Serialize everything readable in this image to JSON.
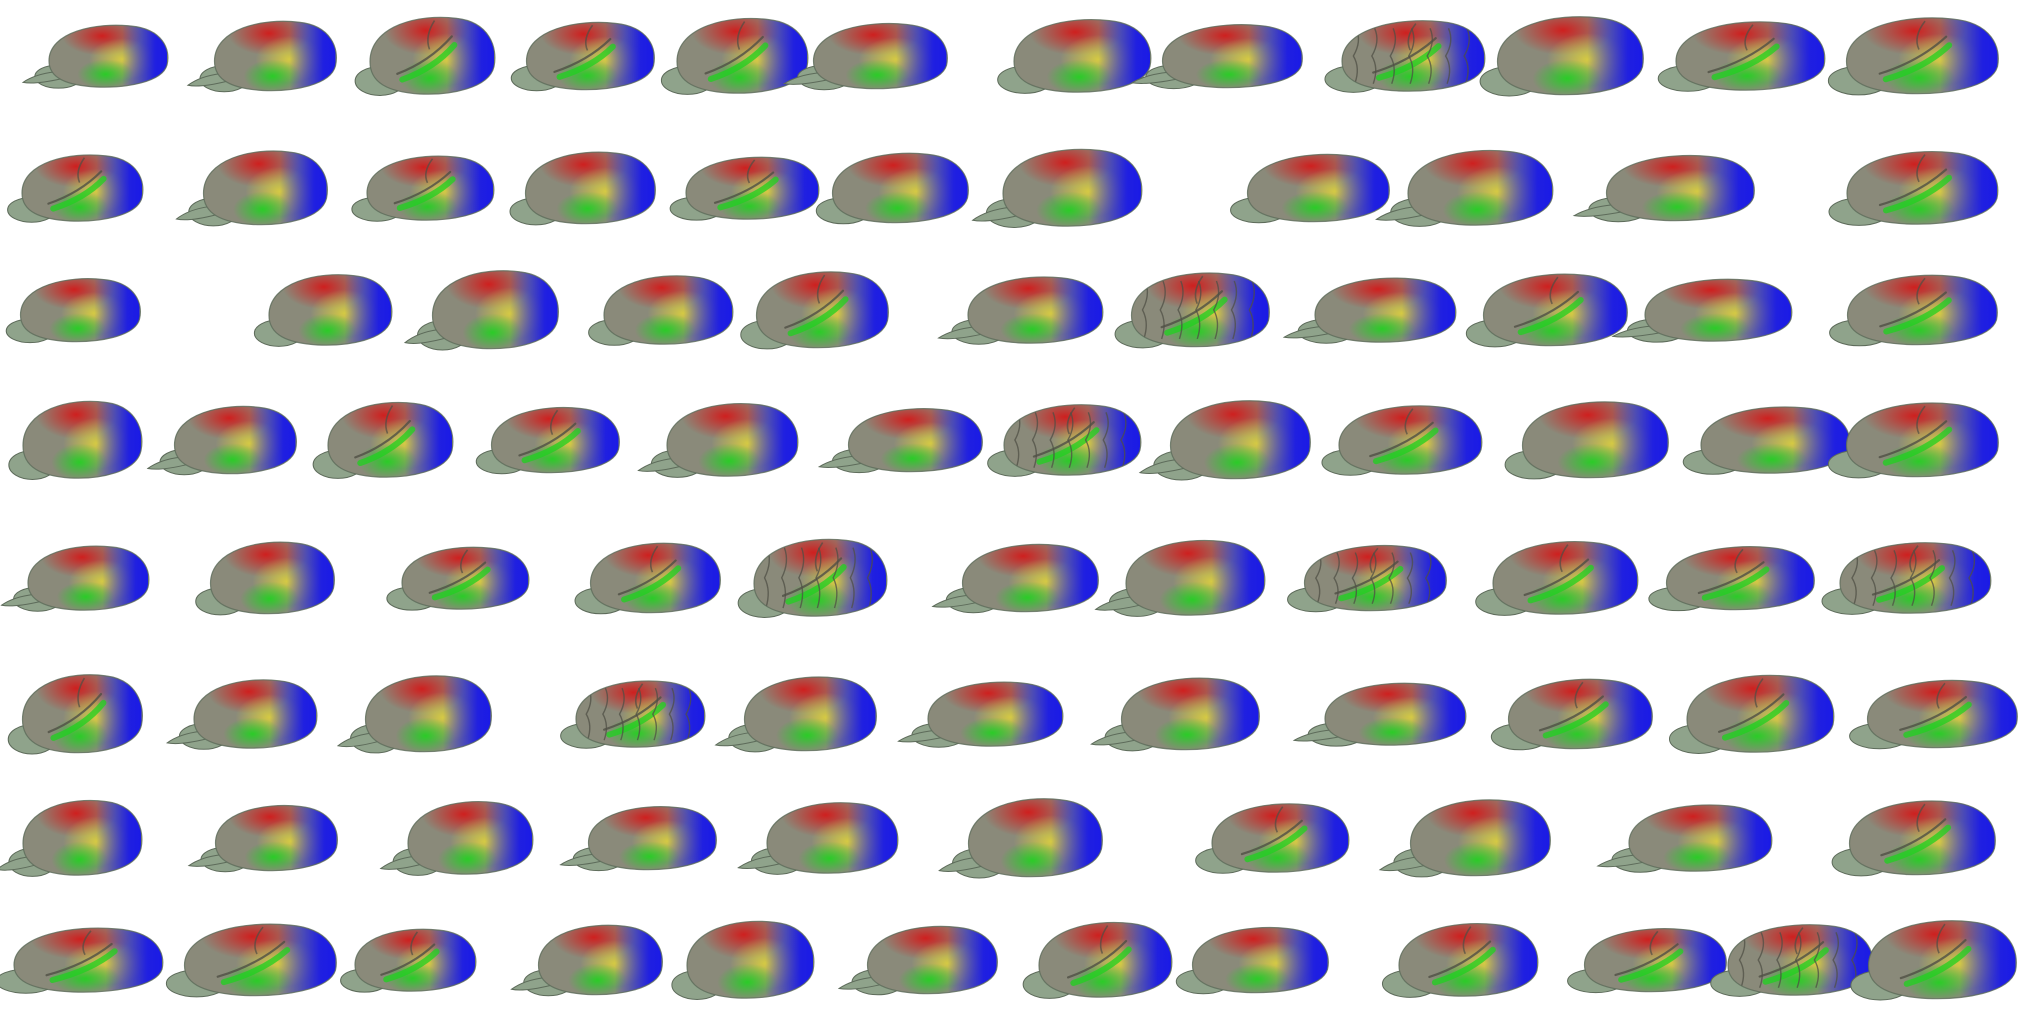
{
  "figure": {
    "rows": 8,
    "cols": 12,
    "palette": {
      "cerebellum": "#8fa38b",
      "cortex": "#8a8a7a",
      "frontal": "#d21a1a",
      "temporal": "#1fd21f",
      "parietal": "#e2d53a",
      "occipital": "#1a1ae6",
      "outline": "#5d6b5a",
      "sulcus": "#4f4f45"
    },
    "brains": [
      {
        "gyri": 0,
        "stem": 1
      },
      {
        "gyri": 0,
        "stem": 1
      },
      {
        "gyri": 1,
        "stem": 0
      },
      {
        "gyri": 1,
        "stem": 0
      },
      {
        "gyri": 1,
        "stem": 0
      },
      {
        "gyri": 0,
        "stem": 1
      },
      {
        "gyri": 0,
        "stem": 0
      },
      {
        "gyri": 0,
        "stem": 1
      },
      {
        "gyri": 2,
        "stem": 0
      },
      {
        "gyri": 0,
        "stem": 0
      },
      {
        "gyri": 1,
        "stem": 0
      },
      {
        "gyri": 1,
        "stem": 0
      },
      {
        "gyri": 1,
        "stem": 0
      },
      {
        "gyri": 0,
        "stem": 1
      },
      {
        "gyri": 1,
        "stem": 0
      },
      {
        "gyri": 0,
        "stem": 0
      },
      {
        "gyri": 1,
        "stem": 0
      },
      {
        "gyri": 0,
        "stem": 0
      },
      {
        "gyri": 0,
        "stem": 1
      },
      {
        "gyri": 0,
        "stem": 0
      },
      {
        "gyri": 0,
        "stem": 1
      },
      {
        "gyri": 0,
        "stem": 1
      },
      {
        "gyri": 1,
        "stem": 0
      },
      {
        "gyri": 0,
        "stem": 0
      },
      {
        "gyri": 0,
        "stem": 0
      },
      {
        "gyri": 0,
        "stem": 1
      },
      {
        "gyri": 0,
        "stem": 0
      },
      {
        "gyri": 1,
        "stem": 0
      },
      {
        "gyri": 0,
        "stem": 1
      },
      {
        "gyri": 2,
        "stem": 0
      },
      {
        "gyri": 0,
        "stem": 1
      },
      {
        "gyri": 1,
        "stem": 0
      },
      {
        "gyri": 0,
        "stem": 1
      },
      {
        "gyri": 1,
        "stem": 0
      },
      {
        "gyri": 0,
        "stem": 0
      },
      {
        "gyri": 0,
        "stem": 1
      },
      {
        "gyri": 1,
        "stem": 0
      },
      {
        "gyri": 1,
        "stem": 0
      },
      {
        "gyri": 0,
        "stem": 1
      },
      {
        "gyri": 0,
        "stem": 1
      },
      {
        "gyri": 2,
        "stem": 0
      },
      {
        "gyri": 0,
        "stem": 1
      },
      {
        "gyri": 1,
        "stem": 0
      },
      {
        "gyri": 0,
        "stem": 0
      },
      {
        "gyri": 0,
        "stem": 0
      },
      {
        "gyri": 1,
        "stem": 0
      },
      {
        "gyri": 0,
        "stem": 1
      },
      {
        "gyri": 0,
        "stem": 0
      },
      {
        "gyri": 1,
        "stem": 0
      },
      {
        "gyri": 1,
        "stem": 0
      },
      {
        "gyri": 2,
        "stem": 0
      },
      {
        "gyri": 0,
        "stem": 1
      },
      {
        "gyri": 0,
        "stem": 1
      },
      {
        "gyri": 2,
        "stem": 0
      },
      {
        "gyri": 1,
        "stem": 0
      },
      {
        "gyri": 1,
        "stem": 0
      },
      {
        "gyri": 2,
        "stem": 0
      },
      {
        "gyri": 1,
        "stem": 0
      },
      {
        "gyri": 0,
        "stem": 1
      },
      {
        "gyri": 0,
        "stem": 1
      },
      {
        "gyri": 2,
        "stem": 0
      },
      {
        "gyri": 0,
        "stem": 1
      },
      {
        "gyri": 0,
        "stem": 1
      },
      {
        "gyri": 0,
        "stem": 1
      },
      {
        "gyri": 0,
        "stem": 1
      },
      {
        "gyri": 1,
        "stem": 0
      },
      {
        "gyri": 1,
        "stem": 0
      },
      {
        "gyri": 1,
        "stem": 0
      },
      {
        "gyri": 0,
        "stem": 1
      },
      {
        "gyri": 0,
        "stem": 1
      },
      {
        "gyri": 0,
        "stem": 1
      },
      {
        "gyri": 0,
        "stem": 1
      },
      {
        "gyri": 0,
        "stem": 1
      },
      {
        "gyri": 0,
        "stem": 1
      },
      {
        "gyri": 1,
        "stem": 0
      },
      {
        "gyri": 0,
        "stem": 1
      },
      {
        "gyri": 0,
        "stem": 1
      },
      {
        "gyri": 1,
        "stem": 0
      },
      {
        "gyri": 1,
        "stem": 0
      },
      {
        "gyri": 1,
        "stem": 0
      },
      {
        "gyri": 1,
        "stem": 0
      },
      {
        "gyri": 0,
        "stem": 1
      },
      {
        "gyri": 0,
        "stem": 0
      },
      {
        "gyri": 0,
        "stem": 1
      },
      {
        "gyri": 1,
        "stem": 0
      },
      {
        "gyri": 0,
        "stem": 0
      },
      {
        "gyri": 1,
        "stem": 0
      },
      {
        "gyri": 1,
        "stem": 0
      },
      {
        "gyri": 2,
        "stem": 0
      },
      {
        "gyri": 1,
        "stem": 0
      }
    ]
  }
}
